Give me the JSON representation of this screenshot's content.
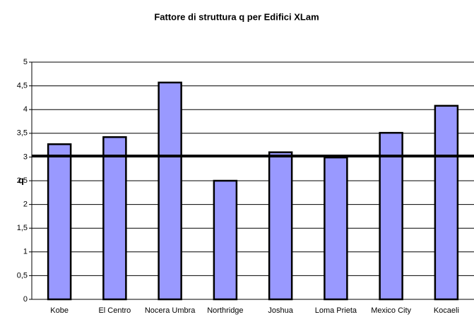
{
  "chart_data": {
    "type": "bar",
    "title": "Fattore di struttura q per Edifici XLam",
    "ylabel": "q",
    "categories": [
      "Kobe",
      "El Centro",
      "Nocera Umbra",
      "Northridge",
      "Joshua",
      "Loma Prieta",
      "Mexico City",
      "Kocaeli"
    ],
    "values": [
      3.27,
      3.42,
      4.57,
      2.5,
      3.1,
      2.99,
      3.51,
      4.08
    ],
    "color": "#9999ff",
    "reference_line": 3.02,
    "ylim": [
      0,
      5
    ],
    "yticks": [
      0,
      {
        "value": 0.5,
        "label": "0,5"
      },
      1,
      {
        "value": 1.5,
        "label": "1,5"
      },
      2,
      {
        "value": 2.5,
        "label": "2,5"
      },
      3,
      {
        "value": 3.5,
        "label": "3,5"
      },
      4,
      {
        "value": 4.5,
        "label": "4,5"
      },
      5
    ],
    "grid": true
  }
}
